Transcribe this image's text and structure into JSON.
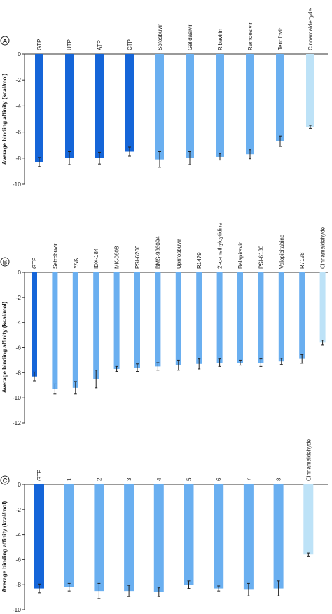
{
  "chart_data": [
    {
      "type": "bar",
      "panel_label": "A",
      "ylabel": "Average binding affinity (kcal/mol)",
      "ylim": [
        -10,
        0
      ],
      "yticks": [
        0,
        -2,
        -4,
        -6,
        -8,
        -10
      ],
      "categories": [
        "GTP",
        "UTP",
        "ATP",
        "CTP",
        "Sofosbuvir",
        "Galidasivir",
        "Ribavirin",
        "Remdesivir",
        "Tenofovir",
        "Cinnamaldehyde"
      ],
      "values": [
        -8.3,
        -8.0,
        -8.0,
        -7.5,
        -8.1,
        -8.0,
        -7.9,
        -7.7,
        -6.7,
        -5.6
      ],
      "errors": [
        0.35,
        0.5,
        0.45,
        0.35,
        0.6,
        0.5,
        0.25,
        0.35,
        0.4,
        0.12
      ],
      "colors": [
        "#1565d8",
        "#1565d8",
        "#1565d8",
        "#1565d8",
        "#6aaff0",
        "#6aaff0",
        "#6aaff0",
        "#6aaff0",
        "#6aaff0",
        "#bde2f7"
      ]
    },
    {
      "type": "bar",
      "panel_label": "B",
      "ylabel": "Average binding affinity (kcal/mol)",
      "ylim": [
        -12,
        0
      ],
      "yticks": [
        0,
        -2,
        -4,
        -6,
        -8,
        -10,
        -12
      ],
      "categories": [
        "GTP",
        "Setrobuvir",
        "YAK",
        "IDX-184",
        "MK-0608",
        "PSI-6206",
        "BMS-986094",
        "Uprifosbuvir",
        "R1479",
        "2'-c-methylcytidine",
        "Balapiravir",
        "PSI-6130",
        "Valopicitabine",
        "R7128",
        "Cinnamaldehyde"
      ],
      "values": [
        -8.3,
        -9.3,
        -9.2,
        -8.5,
        -7.7,
        -7.6,
        -7.5,
        -7.4,
        -7.3,
        -7.2,
        -7.2,
        -7.2,
        -7.1,
        -6.9,
        -5.6
      ],
      "errors": [
        0.35,
        0.4,
        0.5,
        0.7,
        0.2,
        0.3,
        0.3,
        0.4,
        0.4,
        0.3,
        0.2,
        0.3,
        0.25,
        0.35,
        0.2
      ],
      "colors": [
        "#1565d8",
        "#6aaff0",
        "#6aaff0",
        "#6aaff0",
        "#6aaff0",
        "#6aaff0",
        "#6aaff0",
        "#6aaff0",
        "#6aaff0",
        "#6aaff0",
        "#6aaff0",
        "#6aaff0",
        "#6aaff0",
        "#6aaff0",
        "#bde2f7"
      ]
    },
    {
      "type": "bar",
      "panel_label": "C",
      "ylabel": "Average binding affinity (kcal/mol)",
      "ylim": [
        -10,
        0
      ],
      "yticks": [
        0,
        -2,
        -4,
        -6,
        -8,
        -10
      ],
      "categories": [
        "GTP",
        "1",
        "2",
        "3",
        "4",
        "5",
        "6",
        "7",
        "8",
        "Cinnamaldehyde"
      ],
      "values": [
        -8.3,
        -8.2,
        -8.5,
        -8.5,
        -8.6,
        -8.0,
        -8.3,
        -8.4,
        -8.3,
        -5.6
      ],
      "errors": [
        0.35,
        0.3,
        0.6,
        0.45,
        0.35,
        0.3,
        0.2,
        0.5,
        0.6,
        0.12
      ],
      "colors": [
        "#1565d8",
        "#6aaff0",
        "#6aaff0",
        "#6aaff0",
        "#6aaff0",
        "#6aaff0",
        "#6aaff0",
        "#6aaff0",
        "#6aaff0",
        "#bde2f7"
      ]
    }
  ]
}
